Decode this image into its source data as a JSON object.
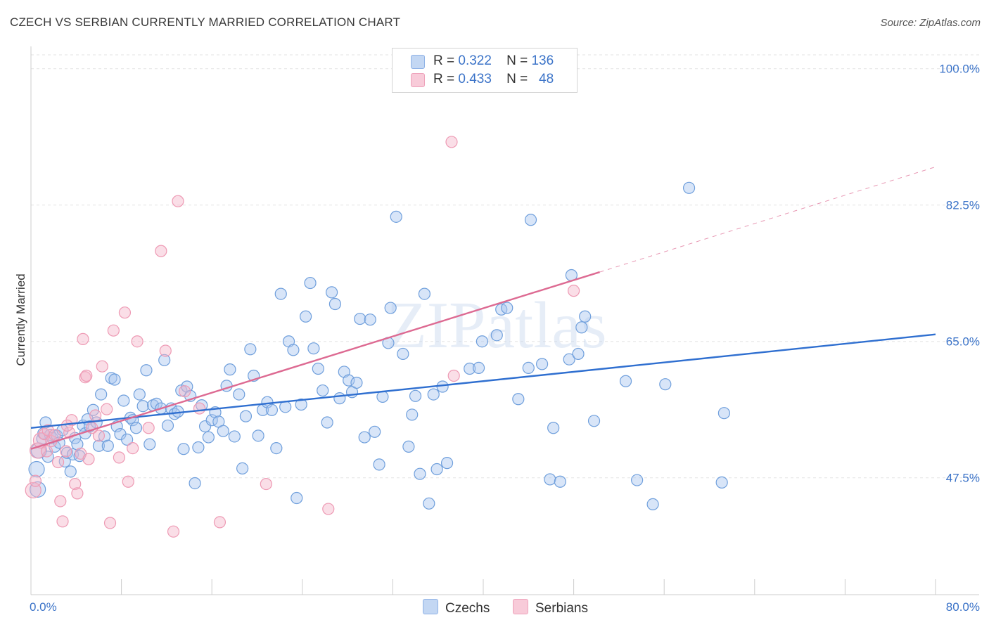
{
  "title": "CZECH VS SERBIAN CURRENTLY MARRIED CORRELATION CHART",
  "source": "Source: ZipAtlas.com",
  "watermark": "ZIPatlas",
  "legend_top": [
    {
      "r_label": "R =",
      "r_value": "0.322",
      "n_label": "N =",
      "n_value": "136",
      "color": "#a9c6ef"
    },
    {
      "r_label": "R =",
      "r_value": "0.433",
      "n_label": "N =",
      "n_value": "48",
      "color": "#f5b6c9"
    }
  ],
  "legend_bottom": [
    {
      "label": "Czechs",
      "color": "#a9c6ef"
    },
    {
      "label": "Serbians",
      "color": "#f5b6c9"
    }
  ],
  "chart_data": {
    "type": "scatter",
    "title": "CZECH VS SERBIAN CURRENTLY MARRIED CORRELATION CHART",
    "xlabel": "",
    "ylabel": "Currently Married",
    "xlim": [
      0,
      80
    ],
    "ylim": [
      32.5,
      102.5
    ],
    "x_tick_labels": [
      {
        "value": 0,
        "label": "0.0%"
      },
      {
        "value": 80,
        "label": "80.0%"
      }
    ],
    "y_tick_labels": [
      {
        "value": 47.5,
        "label": "47.5%"
      },
      {
        "value": 65.0,
        "label": "65.0%"
      },
      {
        "value": 82.5,
        "label": "82.5%"
      },
      {
        "value": 100.0,
        "label": "100.0%"
      }
    ],
    "grid": true,
    "legend_position": "top-center",
    "series": [
      {
        "name": "Czechs",
        "color": "#6f9fdc",
        "fill": "#a9c6ef",
        "trend": {
          "x": [
            0,
            80
          ],
          "y": [
            53.9,
            65.9
          ],
          "color": "#2f6fd0"
        },
        "points": [
          [
            0.5,
            48.6
          ],
          [
            0.6,
            46.0
          ],
          [
            0.7,
            51.0
          ],
          [
            1.0,
            52.5
          ],
          [
            1.1,
            53.2
          ],
          [
            1.3,
            54.6
          ],
          [
            1.5,
            50.2
          ],
          [
            1.7,
            53.0
          ],
          [
            1.9,
            52.6
          ],
          [
            2.1,
            51.5
          ],
          [
            2.3,
            52.9
          ],
          [
            2.5,
            52.0
          ],
          [
            2.8,
            53.6
          ],
          [
            3.0,
            49.6
          ],
          [
            3.2,
            50.7
          ],
          [
            3.5,
            48.3
          ],
          [
            3.7,
            50.5
          ],
          [
            3.9,
            52.6
          ],
          [
            4.1,
            51.8
          ],
          [
            4.3,
            50.3
          ],
          [
            4.6,
            54.2
          ],
          [
            4.8,
            53.2
          ],
          [
            5.0,
            55.0
          ],
          [
            5.2,
            54.1
          ],
          [
            5.5,
            56.2
          ],
          [
            5.8,
            54.6
          ],
          [
            6.0,
            51.6
          ],
          [
            6.2,
            58.2
          ],
          [
            6.5,
            52.8
          ],
          [
            6.8,
            51.6
          ],
          [
            7.1,
            60.3
          ],
          [
            7.4,
            60.1
          ],
          [
            7.6,
            54.1
          ],
          [
            7.9,
            53.1
          ],
          [
            8.2,
            57.4
          ],
          [
            8.5,
            52.4
          ],
          [
            8.8,
            55.2
          ],
          [
            9.0,
            54.9
          ],
          [
            9.3,
            53.9
          ],
          [
            9.6,
            58.2
          ],
          [
            9.9,
            56.7
          ],
          [
            10.2,
            61.3
          ],
          [
            10.5,
            51.8
          ],
          [
            10.8,
            56.8
          ],
          [
            11.1,
            57.0
          ],
          [
            11.5,
            56.4
          ],
          [
            11.8,
            62.6
          ],
          [
            12.1,
            54.2
          ],
          [
            12.4,
            56.4
          ],
          [
            12.7,
            55.7
          ],
          [
            13.0,
            56.0
          ],
          [
            13.3,
            58.7
          ],
          [
            13.5,
            51.2
          ],
          [
            13.8,
            59.2
          ],
          [
            14.1,
            58.0
          ],
          [
            14.5,
            46.8
          ],
          [
            14.8,
            51.4
          ],
          [
            15.1,
            56.8
          ],
          [
            15.4,
            54.1
          ],
          [
            15.7,
            52.7
          ],
          [
            16.0,
            54.9
          ],
          [
            16.3,
            55.9
          ],
          [
            16.6,
            54.7
          ],
          [
            17.0,
            53.5
          ],
          [
            17.3,
            59.3
          ],
          [
            17.6,
            61.4
          ],
          [
            18.0,
            52.8
          ],
          [
            18.4,
            58.2
          ],
          [
            18.7,
            48.7
          ],
          [
            19.0,
            55.4
          ],
          [
            19.4,
            64.0
          ],
          [
            19.7,
            60.6
          ],
          [
            20.1,
            52.9
          ],
          [
            20.5,
            56.2
          ],
          [
            20.9,
            57.2
          ],
          [
            21.3,
            56.2
          ],
          [
            21.7,
            51.3
          ],
          [
            22.1,
            71.1
          ],
          [
            22.5,
            56.6
          ],
          [
            22.8,
            65.0
          ],
          [
            23.2,
            63.9
          ],
          [
            23.5,
            44.9
          ],
          [
            23.9,
            56.9
          ],
          [
            24.3,
            68.2
          ],
          [
            24.7,
            72.5
          ],
          [
            25.0,
            64.1
          ],
          [
            25.4,
            61.5
          ],
          [
            25.8,
            58.7
          ],
          [
            26.2,
            54.6
          ],
          [
            26.6,
            71.3
          ],
          [
            26.9,
            69.8
          ],
          [
            27.3,
            57.7
          ],
          [
            27.7,
            61.1
          ],
          [
            28.1,
            60.0
          ],
          [
            28.4,
            58.5
          ],
          [
            28.8,
            59.7
          ],
          [
            29.1,
            67.9
          ],
          [
            29.5,
            52.7
          ],
          [
            30.0,
            67.8
          ],
          [
            30.4,
            53.4
          ],
          [
            30.8,
            49.2
          ],
          [
            31.1,
            57.9
          ],
          [
            31.6,
            64.8
          ],
          [
            31.8,
            69.3
          ],
          [
            32.3,
            81.0
          ],
          [
            32.9,
            63.4
          ],
          [
            33.4,
            51.5
          ],
          [
            33.7,
            55.6
          ],
          [
            34.0,
            58.0
          ],
          [
            34.4,
            48.0
          ],
          [
            34.8,
            71.1
          ],
          [
            35.2,
            44.2
          ],
          [
            35.6,
            58.2
          ],
          [
            35.9,
            48.6
          ],
          [
            36.4,
            59.2
          ],
          [
            36.8,
            49.4
          ],
          [
            38.8,
            61.5
          ],
          [
            39.6,
            61.6
          ],
          [
            39.9,
            65.0
          ],
          [
            41.2,
            65.8
          ],
          [
            41.6,
            69.1
          ],
          [
            42.1,
            69.3
          ],
          [
            43.1,
            57.6
          ],
          [
            44.0,
            61.6
          ],
          [
            44.2,
            80.6
          ],
          [
            45.2,
            62.1
          ],
          [
            45.9,
            47.3
          ],
          [
            46.2,
            53.9
          ],
          [
            46.8,
            47.0
          ],
          [
            47.6,
            62.7
          ],
          [
            47.8,
            73.5
          ],
          [
            48.4,
            63.4
          ],
          [
            48.7,
            66.8
          ],
          [
            49.0,
            68.2
          ],
          [
            49.8,
            54.8
          ],
          [
            52.6,
            59.9
          ],
          [
            53.6,
            47.2
          ],
          [
            55.0,
            44.1
          ],
          [
            56.1,
            59.5
          ],
          [
            58.2,
            84.7
          ],
          [
            61.1,
            46.9
          ],
          [
            61.3,
            55.8
          ]
        ]
      },
      {
        "name": "Serbians",
        "color": "#ee9ab4",
        "fill": "#f5b6c9",
        "trend": {
          "x": [
            0,
            50.3
          ],
          "y": [
            51.2,
            73.9
          ],
          "color": "#dd6a92",
          "extended": {
            "x": [
              50.3,
              80
            ],
            "y": [
              73.9,
              87.4
            ]
          }
        },
        "points": [
          [
            0.2,
            45.9
          ],
          [
            0.4,
            47.1
          ],
          [
            0.6,
            51.0
          ],
          [
            0.9,
            52.3
          ],
          [
            1.2,
            53.1
          ],
          [
            1.5,
            53.6
          ],
          [
            1.8,
            52.2
          ],
          [
            2.1,
            53.0
          ],
          [
            2.4,
            49.5
          ],
          [
            2.6,
            44.5
          ],
          [
            2.8,
            41.9
          ],
          [
            3.1,
            50.9
          ],
          [
            3.4,
            53.3
          ],
          [
            3.6,
            54.9
          ],
          [
            3.9,
            46.7
          ],
          [
            4.1,
            45.5
          ],
          [
            4.4,
            50.6
          ],
          [
            4.6,
            65.3
          ],
          [
            4.8,
            60.4
          ],
          [
            5.1,
            49.9
          ],
          [
            5.4,
            53.9
          ],
          [
            5.7,
            55.5
          ],
          [
            6.0,
            52.9
          ],
          [
            6.3,
            61.8
          ],
          [
            6.7,
            56.3
          ],
          [
            7.0,
            41.7
          ],
          [
            7.3,
            66.4
          ],
          [
            7.8,
            50.1
          ],
          [
            8.3,
            68.7
          ],
          [
            8.6,
            47.0
          ],
          [
            9.0,
            51.3
          ],
          [
            9.4,
            65.0
          ],
          [
            10.4,
            53.9
          ],
          [
            11.5,
            76.6
          ],
          [
            11.9,
            63.8
          ],
          [
            12.6,
            40.6
          ],
          [
            13.0,
            83.0
          ],
          [
            13.6,
            58.6
          ],
          [
            14.9,
            56.4
          ],
          [
            16.7,
            41.8
          ],
          [
            20.8,
            46.7
          ],
          [
            26.3,
            43.5
          ],
          [
            37.2,
            90.6
          ],
          [
            37.4,
            60.6
          ],
          [
            48.0,
            71.5
          ],
          [
            4.9,
            60.6
          ],
          [
            3.2,
            54.2
          ],
          [
            1.4,
            50.9
          ]
        ]
      }
    ]
  }
}
